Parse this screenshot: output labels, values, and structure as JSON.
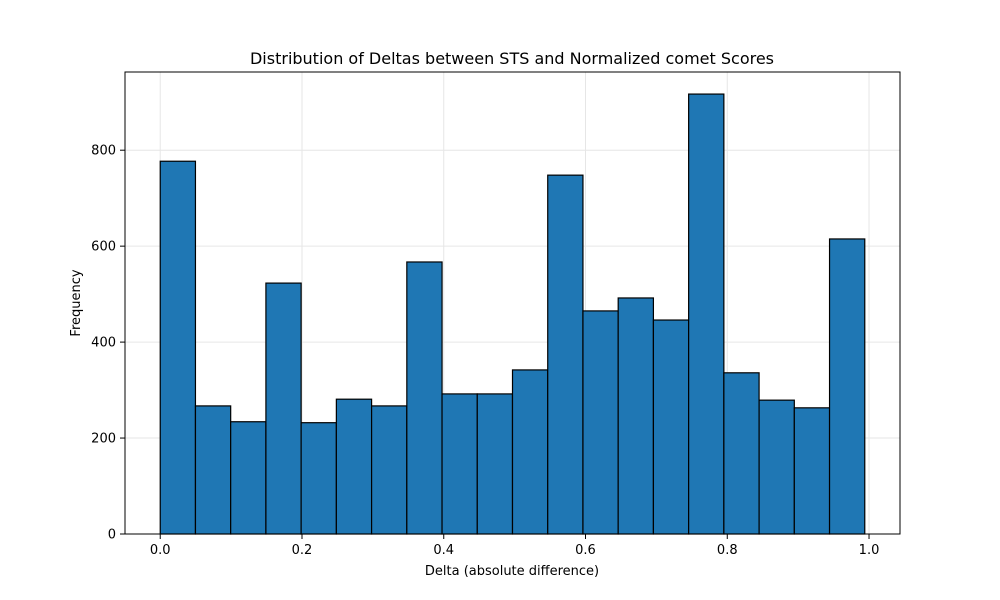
{
  "colors": {
    "bar_fill": "#1f77b4",
    "bar_edge": "#000000",
    "grid": "#e6e6e6",
    "axes": "#000000",
    "background": "#ffffff"
  },
  "chart_data": {
    "type": "bar",
    "title": "Distribution of Deltas between STS and Normalized comet Scores",
    "xlabel": "Delta (absolute difference)",
    "ylabel": "Frequency",
    "bin_edges": [
      0.0,
      0.0497,
      0.0994,
      0.1491,
      0.1988,
      0.2485,
      0.2982,
      0.3479,
      0.3976,
      0.4473,
      0.497,
      0.5467,
      0.5964,
      0.6461,
      0.6958,
      0.7455,
      0.7952,
      0.8449,
      0.8946,
      0.9443,
      0.994
    ],
    "values": [
      777,
      267,
      234,
      523,
      232,
      281,
      267,
      567,
      292,
      292,
      342,
      748,
      465,
      492,
      446,
      917,
      336,
      279,
      263,
      615
    ],
    "xlim": [
      -0.0497,
      1.0437
    ],
    "ylim": [
      0,
      963
    ],
    "xticks": [
      0.0,
      0.2,
      0.4,
      0.6,
      0.8,
      1.0
    ],
    "xtick_labels": [
      "0.0",
      "0.2",
      "0.4",
      "0.6",
      "0.8",
      "1.0"
    ],
    "yticks": [
      0,
      200,
      400,
      600,
      800
    ],
    "ytick_labels": [
      "0",
      "200",
      "400",
      "600",
      "800"
    ],
    "grid": true
  }
}
